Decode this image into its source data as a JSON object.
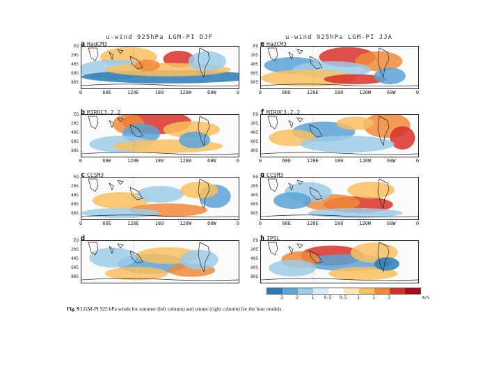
{
  "figure": {
    "left_title": "u-wind 925hPa LGM-PI DJF",
    "right_title": "u-wind 925hPa LGM-PI JJA",
    "panels": [
      {
        "letter": "a",
        "model": "HadCM3",
        "season": "DJF"
      },
      {
        "letter": "b",
        "model": "MIROC3.2.2",
        "season": "DJF"
      },
      {
        "letter": "c",
        "model": "CCSM3",
        "season": "DJF"
      },
      {
        "letter": "d",
        "model": "",
        "season": "DJF"
      },
      {
        "letter": "e",
        "model": "HadCM3",
        "season": "JJA"
      },
      {
        "letter": "f",
        "model": "MIROC3.2.2",
        "season": "JJA"
      },
      {
        "letter": "g",
        "model": "CCSM3",
        "season": "JJA"
      },
      {
        "letter": "h",
        "model": "IPSL",
        "season": "JJA"
      }
    ],
    "lat_ticks": [
      "EQ",
      "20S",
      "40S",
      "60S",
      "80S"
    ],
    "lon_ticks": [
      "0",
      "60E",
      "120E",
      "180",
      "120W",
      "60W",
      "0"
    ],
    "colorbar": {
      "ticks": [
        "3",
        "2",
        "1",
        "0.5",
        "0.5",
        "1",
        "2",
        "3"
      ],
      "units": "m/s",
      "colors": [
        "#2c7bb6",
        "#5aa3d6",
        "#9ccbe8",
        "#d6ebf7",
        "#ffffff",
        "#fde9b4",
        "#f9c05f",
        "#f08a3a",
        "#d73027",
        "#a50f15"
      ]
    },
    "caption": {
      "label": "Fig. 9",
      "text": "LGM-PI 925 hPa winds for summer (left column) and winter (right column) for the four models"
    }
  }
}
